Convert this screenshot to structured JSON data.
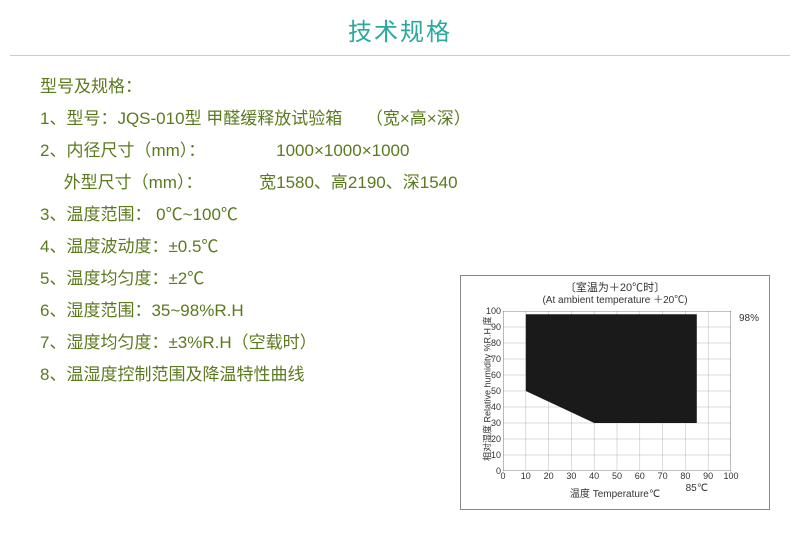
{
  "colors": {
    "title": "#2aa9a0",
    "text": "#5a7a1e",
    "chart_fill": "#1a1a1a",
    "chart_grid": "#888888",
    "chart_text": "#333333"
  },
  "title": "技术规格",
  "section_label": "型号及规格：",
  "lines": [
    "1、型号：JQS-010型 甲醛缓释放试验箱     （宽×高×深）",
    "2、内径尺寸（mm）：               1000×1000×1000",
    "     外型尺寸（mm）：            宽1580、高2190、深1540",
    "3、温度范围： 0℃~100℃",
    "4、温度波动度：±0.5℃",
    "5、温度均匀度：±2℃",
    "6、湿度范围：35~98%R.H",
    "7、湿度均匀度：±3%R.H（空载时）",
    "8、温湿度控制范围及降温特性曲线"
  ],
  "chart": {
    "title_cn": "〔室温为＋20℃时〕",
    "title_en": "(At ambient temperature ＋20℃)",
    "y_label": "相对湿度 Relative humidity %R.H 度",
    "x_label": "温度 Temperature℃",
    "x_anno": "85℃",
    "right_anno": "98%",
    "x_ticks": [
      0,
      10,
      20,
      30,
      40,
      50,
      60,
      70,
      80,
      90,
      100
    ],
    "y_ticks": [
      0,
      10,
      20,
      30,
      40,
      50,
      60,
      70,
      80,
      90,
      100
    ],
    "xlim": [
      0,
      100
    ],
    "ylim": [
      0,
      100
    ],
    "region": [
      [
        10,
        98
      ],
      [
        85,
        98
      ],
      [
        85,
        30
      ],
      [
        40,
        30
      ],
      [
        10,
        50
      ]
    ],
    "grid_step": 10,
    "fill_color": "#1a1a1a",
    "grid_color": "#888888",
    "bg_color": "#ffffff"
  }
}
